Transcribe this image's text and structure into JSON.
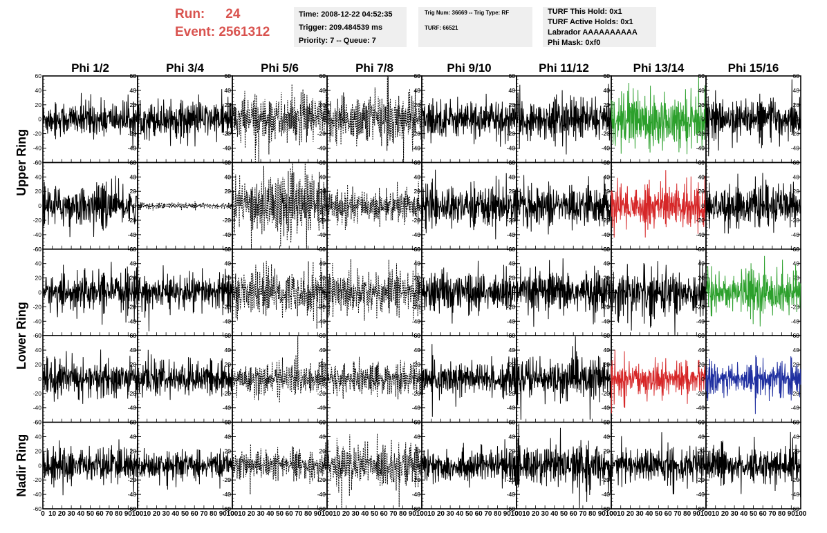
{
  "header": {
    "run_label": "Run:",
    "run_value": "24",
    "event_label": "Event:",
    "event_value": "2561312"
  },
  "info_time": {
    "time": "Time: 2008-12-22 04:52:35",
    "trigger": "Trigger: 209.484539 ms",
    "priority": "Priority: 7 -- Queue: 7"
  },
  "info_trig": {
    "trig": "Trig Num: 36669 -- Trig Type: RF",
    "turf": "TURF: 66521"
  },
  "info_turf": {
    "this_hold": "TURF This Hold: 0x1",
    "active_holds": "TURF Active Holds: 0x1",
    "labrador": "Labrador AAAAAAAAAA",
    "phi_mask": "Phi Mask: 0xf0"
  },
  "chart_data": {
    "type": "line",
    "columns": [
      "Phi 1/2",
      "Phi 3/4",
      "Phi 5/6",
      "Phi 7/8",
      "Phi 9/10",
      "Phi 11/12",
      "Phi 13/14",
      "Phi 15/16"
    ],
    "ring_labels": [
      {
        "text": "Upper Ring",
        "rows": [
          0,
          1
        ]
      },
      {
        "text": "Lower Ring",
        "rows": [
          2,
          3
        ]
      },
      {
        "text": "Nadir Ring",
        "rows": [
          4,
          4
        ]
      }
    ],
    "ylim": [
      -60,
      60
    ],
    "yticks": [
      60,
      40,
      20,
      0,
      -20,
      -40,
      -60
    ],
    "xlim": [
      0,
      100
    ],
    "xtick_labels": [
      "0",
      "10",
      "20",
      "30",
      "40",
      "50",
      "60",
      "70",
      "80",
      "90",
      "100"
    ],
    "samples": 260,
    "colors": {
      "black": "#000000",
      "green": "#2ca02c",
      "red": "#d62728",
      "blue": "#1f2fa0"
    },
    "styles": [
      [
        "solid",
        "solid",
        "dashed",
        "dashed",
        "solid",
        "solid",
        "solid",
        "solid"
      ],
      [
        "solid",
        "dashed",
        "dashed",
        "dashed",
        "solid",
        "solid",
        "solid",
        "solid"
      ],
      [
        "solid",
        "solid",
        "dashed",
        "dashed",
        "solid",
        "solid",
        "solid",
        "solid"
      ],
      [
        "solid",
        "solid",
        "dashed",
        "dashed",
        "solid",
        "solid",
        "solid",
        "solid"
      ],
      [
        "solid",
        "solid",
        "dashed",
        "dashed",
        "solid",
        "solid",
        "solid",
        "solid"
      ]
    ],
    "trace_colors": [
      [
        "black",
        "black",
        "black",
        "black",
        "black",
        "black",
        "green",
        "black"
      ],
      [
        "black",
        "black",
        "black",
        "black",
        "black",
        "black",
        "red",
        "black"
      ],
      [
        "black",
        "black",
        "black",
        "black",
        "black",
        "black",
        "black",
        "green"
      ],
      [
        "black",
        "black",
        "black",
        "black",
        "black",
        "black",
        "red",
        "blue"
      ],
      [
        "black",
        "black",
        "black",
        "black",
        "black",
        "black",
        "black",
        "black"
      ]
    ],
    "amplitudes": [
      [
        16,
        16,
        22,
        24,
        17,
        18,
        24,
        17
      ],
      [
        18,
        3,
        27,
        14,
        18,
        18,
        20,
        18
      ],
      [
        16,
        16,
        20,
        20,
        18,
        19,
        22,
        20
      ],
      [
        16,
        15,
        14,
        14,
        17,
        19,
        14,
        15
      ],
      [
        16,
        12,
        12,
        20,
        15,
        17,
        16,
        16
      ]
    ]
  }
}
